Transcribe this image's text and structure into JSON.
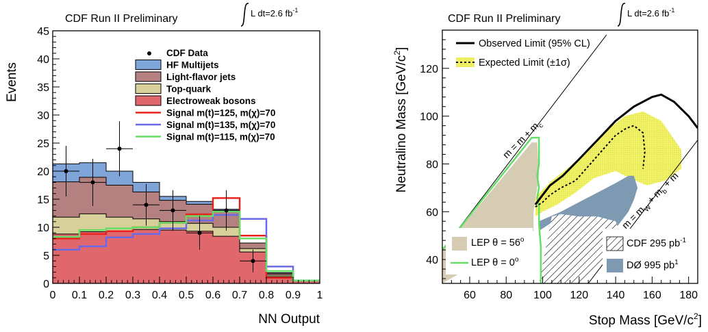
{
  "chart_data": [
    {
      "type": "bar",
      "header": "CDF Run II Preliminary",
      "lumi_text": "L dt=2.6 fb",
      "lumi_sup": "-1",
      "xlabel": "NN Output",
      "ylabel": "Events",
      "xlim": [
        0,
        1
      ],
      "ylim": [
        0,
        45
      ],
      "xticks": [
        "0",
        "0.1",
        "0.2",
        "0.3",
        "0.4",
        "0.5",
        "0.6",
        "0.7",
        "0.8",
        "0.9",
        "1"
      ],
      "yticks": [
        "0",
        "5",
        "10",
        "15",
        "20",
        "25",
        "30",
        "35",
        "40",
        "45"
      ],
      "bin_edges": [
        0,
        0.1,
        0.2,
        0.3,
        0.4,
        0.5,
        0.6,
        0.7,
        0.8,
        0.9,
        1.0
      ],
      "stack": [
        {
          "name": "Electroweak bosons",
          "color": "#e0686d",
          "values": [
            8.8,
            9.2,
            9.3,
            9.6,
            9.5,
            9.3,
            8.4,
            5.6,
            1.2,
            0.5
          ]
        },
        {
          "name": "Top-quark",
          "color": "#d8d09a",
          "values": [
            3.0,
            3.2,
            2.5,
            1.9,
            1.5,
            1.4,
            1.6,
            0.6,
            0.3,
            0.0
          ]
        },
        {
          "name": "Light-flavor jets",
          "color": "#b48080",
          "values": [
            6.3,
            6.5,
            5.7,
            4.8,
            3.8,
            3.4,
            3.0,
            1.0,
            0.3,
            0.0
          ]
        },
        {
          "name": "HF Multijets",
          "color": "#7fa4d8",
          "values": [
            3.2,
            2.6,
            2.5,
            1.7,
            0.7,
            0.5,
            0.2,
            0.0,
            0.1,
            0.0
          ]
        }
      ],
      "signals": [
        {
          "name": "Signal m(t)=125, m(χ)=70",
          "color": "#e8221c",
          "values": [
            8.0,
            8.8,
            9.3,
            10.0,
            10.8,
            12.3,
            15.2,
            8.5,
            1.0,
            0.5
          ]
        },
        {
          "name": "Signal m(t)=135, m(χ)=70",
          "color": "#6a6ae8",
          "values": [
            6.0,
            6.6,
            8.2,
            8.8,
            9.8,
            11.2,
            12.2,
            11.5,
            3.0,
            0.5
          ]
        },
        {
          "name": "Signal m(t)=115, m(χ)=70",
          "color": "#66dd66",
          "values": [
            8.3,
            9.5,
            9.8,
            10.0,
            10.8,
            12.0,
            12.8,
            8.0,
            2.2,
            0.5
          ]
        }
      ],
      "data": {
        "name": "CDF Data",
        "x": [
          0.05,
          0.15,
          0.25,
          0.35,
          0.45,
          0.55,
          0.65,
          0.75
        ],
        "y": [
          20,
          18,
          24,
          14,
          13,
          9,
          13,
          4
        ],
        "err": [
          4.5,
          4.2,
          4.9,
          3.7,
          3.6,
          3.0,
          3.6,
          2.0
        ]
      },
      "legend": [
        {
          "kind": "point",
          "label": "CDF Data"
        },
        {
          "kind": "box",
          "label": "HF Multijets",
          "color": "#7fa4d8"
        },
        {
          "kind": "box",
          "label": "Light-flavor jets",
          "color": "#b48080"
        },
        {
          "kind": "box",
          "label": "Top-quark",
          "color": "#d8d09a"
        },
        {
          "kind": "box",
          "label": "Electroweak bosons",
          "color": "#e0686d"
        },
        {
          "kind": "line",
          "label": "Signal m(t)=125, m(χ)=70",
          "color": "#e8221c"
        },
        {
          "kind": "line",
          "label": "Signal m(t)=135, m(χ)=70",
          "color": "#6a6ae8"
        },
        {
          "kind": "line",
          "label": "Signal m(t)=115, m(χ)=70",
          "color": "#66dd66"
        }
      ]
    },
    {
      "type": "exclusion",
      "header": "CDF Run II Preliminary",
      "lumi_text": "L dt=2.6 fb",
      "lumi_sup": "-1",
      "xlabel": "Stop Mass [GeV/c",
      "xlabel_sup": "2",
      "xlabel_end": "]",
      "ylabel": "Neutralino Mass [GeV/c",
      "ylabel_sup": "2",
      "ylabel_end": "]",
      "xlim": [
        45,
        185
      ],
      "ylim": [
        30,
        136
      ],
      "xticks": [
        60,
        80,
        100,
        120,
        140,
        160,
        180
      ],
      "yticks": [
        40,
        60,
        80,
        100,
        120
      ],
      "observed": {
        "x": [
          96,
          97,
          100,
          104,
          111,
          120,
          130,
          140,
          150,
          160,
          165,
          172,
          180,
          185
        ],
        "y": [
          63,
          64,
          67,
          71,
          75,
          82,
          90,
          98,
          104,
          108,
          109,
          106,
          100,
          95
        ]
      },
      "expected": {
        "x": [
          96,
          98,
          100,
          104,
          110,
          118,
          125,
          133,
          140,
          146,
          150,
          155,
          156,
          155
        ],
        "y": [
          62,
          63,
          64,
          67,
          70,
          73,
          79,
          86,
          92,
          95,
          96,
          93,
          85,
          78
        ]
      },
      "band": {
        "x": [
          96,
          105,
          115,
          125,
          135,
          145,
          155,
          165,
          176,
          176,
          167,
          157,
          148,
          140,
          128,
          118,
          108,
          100,
          96
        ],
        "y": [
          66,
          73,
          79,
          86,
          94,
          100,
          102,
          98,
          86,
          78,
          73,
          71,
          74,
          77,
          74,
          68,
          63,
          60,
          58
        ]
      },
      "lep56": {
        "x": [
          45,
          94,
          97,
          98,
          97,
          96,
          95,
          95,
          45
        ],
        "y": [
          44,
          89,
          89,
          75,
          70,
          65,
          60,
          52,
          30
        ]
      },
      "lep0": {
        "x": [
          45,
          94,
          98,
          98,
          97,
          98,
          97,
          98,
          98,
          99,
          99
        ],
        "y": [
          44,
          91,
          91,
          80,
          75,
          70,
          66,
          62,
          55,
          45,
          30
        ]
      },
      "cdf295": {
        "x": [
          98,
          105,
          110,
          120,
          130,
          140,
          142,
          139,
          130,
          120,
          108,
          98
        ],
        "y": [
          30,
          58,
          59,
          58,
          58,
          56,
          52,
          45,
          37,
          30,
          30,
          30
        ]
      },
      "d0": {
        "x": [
          98,
          110,
          120,
          130,
          140,
          147,
          150,
          152,
          150,
          147,
          140,
          132,
          120,
          110,
          98
        ],
        "y": [
          56,
          60,
          64,
          68,
          72,
          75,
          75,
          70,
          65,
          60,
          53,
          55,
          58,
          58,
          52
        ]
      },
      "kin_line1": {
        "x": [
          45,
          135
        ],
        "y": [
          44,
          134
        ]
      },
      "kin_line2": {
        "x": [
          125,
          185
        ],
        "y": [
          30,
          90
        ]
      },
      "kin_label1": "m",
      "kin_label1_rest": " = m",
      "kin_label1_end": " + m",
      "kin_label1_c": "c",
      "kin_label2": "m",
      "kin_label2_rest": " = m",
      "kin_label2_mid": " + m",
      "kin_label2_b": "b",
      "kin_label2_end": " + m",
      "kin_label2_w": "W",
      "legend": [
        {
          "kind": "line",
          "label": "Observed Limit (95% CL)",
          "color": "#000000"
        },
        {
          "kind": "dashbox",
          "label": "Expected Limit (±1σ)",
          "color": "#f0f050"
        }
      ],
      "legend2": [
        {
          "kind": "box",
          "label": "LEP θ = 56",
          "sup": "o",
          "color": "#d6ccb4"
        },
        {
          "kind": "line",
          "label": "LEP θ = 0",
          "sup": "o",
          "color": "#66dd66"
        }
      ],
      "legend3": [
        {
          "kind": "hatch",
          "label": "CDF 295 pb",
          "sup": "-1"
        },
        {
          "kind": "box",
          "label": "DØ 995 pb",
          "sup": "1",
          "color": "#7e9ab2"
        }
      ]
    }
  ]
}
